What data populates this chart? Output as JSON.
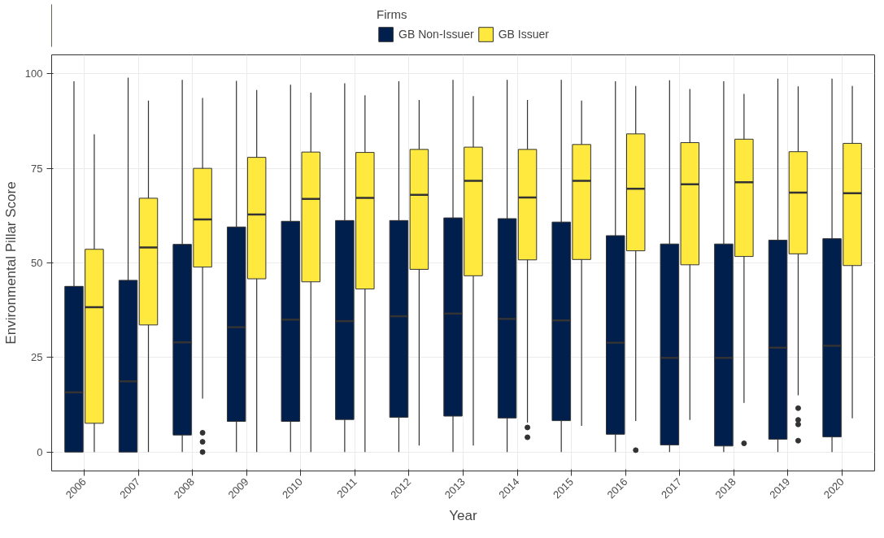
{
  "chart_data": {
    "type": "box",
    "xlabel": "Year",
    "ylabel": "Environmental Pillar Score",
    "legend_title": "Firms",
    "legend": "top",
    "grid": true,
    "categories": [
      "2006",
      "2007",
      "2008",
      "2009",
      "2010",
      "2011",
      "2012",
      "2013",
      "2014",
      "2015",
      "2016",
      "2017",
      "2018",
      "2019",
      "2020"
    ],
    "ylim": [
      -5,
      105
    ],
    "yticks": [
      0,
      25,
      50,
      75,
      100
    ],
    "series": [
      {
        "name": "GB Non-Issuer",
        "color": "#001f4d",
        "boxes": [
          {
            "low": 0,
            "q1": 0,
            "median": 15.8,
            "q3": 43.8,
            "high": 98
          },
          {
            "low": 0,
            "q1": 0,
            "median": 18.7,
            "q3": 45.4,
            "high": 99
          },
          {
            "low": 0,
            "q1": 4.5,
            "median": 29,
            "q3": 54.9,
            "high": 98.4
          },
          {
            "low": 0,
            "q1": 8.1,
            "median": 33,
            "q3": 59.5,
            "high": 98.1
          },
          {
            "low": 0,
            "q1": 8.1,
            "median": 35,
            "q3": 61,
            "high": 97.1
          },
          {
            "low": 0,
            "q1": 8.6,
            "median": 34.6,
            "q3": 61.2,
            "high": 97.5
          },
          {
            "low": 0,
            "q1": 9.2,
            "median": 35.9,
            "q3": 61.2,
            "high": 98
          },
          {
            "low": 0,
            "q1": 9.5,
            "median": 36.6,
            "q3": 61.9,
            "high": 98.4
          },
          {
            "low": 0,
            "q1": 9,
            "median": 35.2,
            "q3": 61.7,
            "high": 98.4
          },
          {
            "low": 0,
            "q1": 8.3,
            "median": 34.8,
            "q3": 60.8,
            "high": 98.4
          },
          {
            "low": 0,
            "q1": 4.7,
            "median": 28.9,
            "q3": 57.2,
            "high": 98
          },
          {
            "low": 0,
            "q1": 1.9,
            "median": 24.9,
            "q3": 55,
            "high": 98.3
          },
          {
            "low": 0,
            "q1": 1.6,
            "median": 24.9,
            "q3": 55,
            "high": 98
          },
          {
            "low": 0,
            "q1": 3.4,
            "median": 27.6,
            "q3": 56,
            "high": 98.7
          },
          {
            "low": 0,
            "q1": 4,
            "median": 28.1,
            "q3": 56.4,
            "high": 98.7
          }
        ]
      },
      {
        "name": "GB Issuer",
        "color": "#ffe93f",
        "boxes": [
          {
            "low": 0,
            "q1": 7.6,
            "median": 38.3,
            "q3": 53.6,
            "high": 84
          },
          {
            "low": 0,
            "q1": 33.6,
            "median": 54.1,
            "q3": 67.1,
            "high": 92.9
          },
          {
            "low": 14.1,
            "q1": 48.9,
            "median": 61.5,
            "q3": 75,
            "high": 93.6,
            "outliers": [
              5.1,
              2.7,
              0
            ]
          },
          {
            "low": 0,
            "q1": 45.8,
            "median": 62.8,
            "q3": 77.9,
            "high": 95.7
          },
          {
            "low": 0,
            "q1": 45,
            "median": 66.9,
            "q3": 79.3,
            "high": 95
          },
          {
            "low": 0,
            "q1": 43.1,
            "median": 67.2,
            "q3": 79.2,
            "high": 94.3
          },
          {
            "low": 1.7,
            "q1": 48.3,
            "median": 68,
            "q3": 80,
            "high": 93.1
          },
          {
            "low": 1.7,
            "q1": 46.6,
            "median": 71.7,
            "q3": 80.6,
            "high": 94.1
          },
          {
            "low": 7.8,
            "q1": 50.8,
            "median": 67.3,
            "q3": 80,
            "high": 93.1,
            "outliers": [
              6.5,
              3.9
            ]
          },
          {
            "low": 6.9,
            "q1": 50.9,
            "median": 71.7,
            "q3": 81.3,
            "high": 92.9
          },
          {
            "low": 8.2,
            "q1": 53.2,
            "median": 69.6,
            "q3": 84.1,
            "high": 96.8,
            "outliers": [
              0.5
            ]
          },
          {
            "low": 8.5,
            "q1": 49.5,
            "median": 70.8,
            "q3": 81.8,
            "high": 96
          },
          {
            "low": 13,
            "q1": 51.7,
            "median": 71.3,
            "q3": 82.7,
            "high": 94.7,
            "outliers": [
              2.3
            ]
          },
          {
            "low": 15,
            "q1": 52.4,
            "median": 68.6,
            "q3": 79.4,
            "high": 96.7,
            "outliers": [
              11.6,
              8.5,
              7.3,
              3
            ]
          },
          {
            "low": 8.9,
            "q1": 49.3,
            "median": 68.4,
            "q3": 81.6,
            "high": 96.8
          }
        ]
      }
    ]
  }
}
